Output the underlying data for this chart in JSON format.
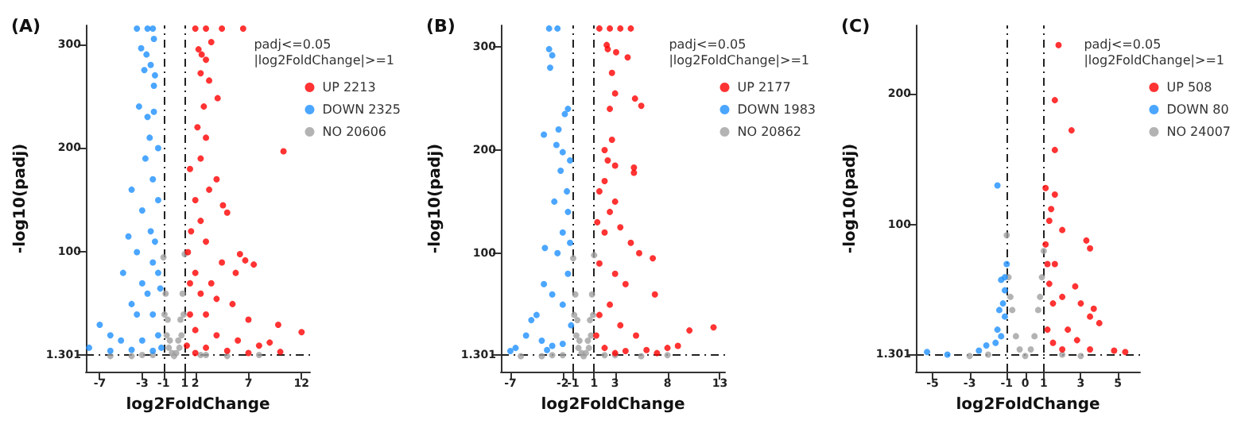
{
  "chart_data": [
    {
      "type": "scatter",
      "title": "(A)",
      "xlabel": "log2FoldChange",
      "ylabel": "-log10(padj)",
      "legend_title": "padj<=0.05\n|log2FoldChange|>=1",
      "legend": "top right",
      "grid": false,
      "marker": "circle",
      "xlim": [
        -8.3,
        12.8
      ],
      "ylim": [
        -15,
        318
      ],
      "xticks": [
        -7,
        -3,
        -1,
        1,
        2,
        7,
        12
      ],
      "yticks": [
        1.301,
        100,
        200,
        300
      ],
      "ref_lines": [
        {
          "axis": "x",
          "value": -1
        },
        {
          "axis": "x",
          "value": 1
        },
        {
          "axis": "y",
          "value": 1.301
        }
      ],
      "series": [
        {
          "name": "UP 2213",
          "color": "#ff0000",
          "x": [
            3.5,
            2.3,
            2.6,
            3.0,
            2.5,
            3.3,
            4.1,
            2.8,
            2.2,
            3.0,
            2.5,
            10.3,
            4.0,
            3.3,
            4.6,
            2.0,
            2.5,
            5.0,
            1.6,
            3.0,
            6.2,
            6.7,
            7.5,
            4.5,
            2.0,
            3.5,
            5.8,
            1.5,
            2.5,
            4.0,
            5.5,
            9.8,
            12,
            7,
            3,
            1.5,
            2,
            4,
            6,
            8,
            9,
            3,
            5,
            1.2,
            2,
            7,
            10,
            1.3,
            1.5,
            2.0,
            3.0,
            4.5,
            6.5
          ],
          "values": [
            302,
            295,
            290,
            285,
            272,
            265,
            248,
            240,
            220,
            210,
            190,
            197,
            170,
            160,
            145,
            150,
            130,
            138,
            120,
            110,
            98,
            92,
            88,
            90,
            80,
            70,
            80,
            70,
            60,
            55,
            50,
            30,
            23,
            35,
            40,
            40,
            25,
            20,
            15,
            10,
            13,
            8,
            5,
            10,
            3,
            3,
            4,
            100,
            180,
            315,
            315,
            315,
            315
          ]
        },
        {
          "name": "DOWN 2325",
          "color": "#1e90ff",
          "x": [
            -1.9,
            -3.1,
            -2.6,
            -2.2,
            -2.8,
            -1.8,
            -1.9,
            -3.3,
            -1.9,
            -2.5,
            -2.3,
            -1.5,
            -2.7,
            -4.0,
            -2.0,
            -1.5,
            -3.0,
            -2.2,
            -4.3,
            -1.8,
            -3.5,
            -2.0,
            -4.8,
            -1.5,
            -3.0,
            -2.5,
            -1.3,
            -4.0,
            -3.5,
            -2.0,
            -7.0,
            -6.0,
            -5,
            -3,
            -1.5,
            -8,
            -6,
            -4,
            -2,
            -1.2,
            -3.5,
            -2.5,
            -2
          ],
          "values": [
            305,
            296,
            290,
            280,
            275,
            270,
            260,
            240,
            235,
            230,
            210,
            200,
            190,
            160,
            170,
            150,
            140,
            120,
            115,
            110,
            100,
            90,
            80,
            80,
            70,
            60,
            65,
            50,
            40,
            40,
            30,
            20,
            15,
            15,
            20,
            8,
            5,
            6,
            5,
            8,
            315,
            315,
            315
          ]
        },
        {
          "name": "NO 20606",
          "color": "#a0a0a0",
          "x": [
            -1,
            -0.8,
            -0.6,
            -0.4,
            -0.2,
            0,
            0.2,
            0.4,
            0.6,
            0.8,
            1,
            -0.9,
            0.9,
            -0.7,
            0.7,
            -0.5,
            0.5,
            -6,
            -4,
            -3,
            -2,
            2.5,
            3,
            5,
            8
          ],
          "values": [
            95,
            60,
            35,
            15,
            3,
            0,
            3,
            15,
            35,
            60,
            98,
            40,
            40,
            20,
            20,
            8,
            8,
            0,
            0,
            1,
            1,
            1,
            1,
            0,
            1
          ]
        }
      ]
    },
    {
      "type": "scatter",
      "title": "(B)",
      "xlabel": "log2FoldChange",
      "ylabel": "-log10(padj)",
      "legend_title": "padj<=0.05\n|log2FoldChange|>=1",
      "legend": "top right",
      "grid": false,
      "marker": "circle",
      "xlim": [
        -7.9,
        13.5
      ],
      "ylim": [
        -15,
        321
      ],
      "xticks": [
        -7,
        -2,
        -1,
        1,
        3,
        8,
        13
      ],
      "yticks": [
        1.301,
        100,
        200,
        300
      ],
      "ref_lines": [
        {
          "axis": "x",
          "value": -1
        },
        {
          "axis": "x",
          "value": 1
        },
        {
          "axis": "y",
          "value": 1.301
        }
      ],
      "series": [
        {
          "name": "UP 2177",
          "color": "#ff0000",
          "x": [
            2.2,
            2.3,
            3.1,
            4.2,
            2.7,
            3.0,
            2.5,
            4.9,
            5.5,
            2.7,
            2.0,
            2.3,
            3.0,
            4.8,
            4.8,
            2.0,
            1.5,
            3.0,
            2.5,
            1.3,
            3.5,
            4.5,
            5.3,
            2.0,
            6.6,
            3.0,
            1.5,
            4.0,
            6.8,
            2.5,
            1.5,
            3.5,
            5.0,
            10.1,
            12.4,
            9,
            8,
            6,
            4,
            2,
            1.2,
            3,
            7,
            1.5,
            2.5,
            3.5,
            4.5
          ],
          "values": [
            302,
            298,
            295,
            290,
            275,
            255,
            240,
            250,
            243,
            210,
            200,
            190,
            185,
            183,
            178,
            170,
            160,
            150,
            140,
            130,
            125,
            110,
            100,
            120,
            95,
            80,
            90,
            70,
            60,
            50,
            40,
            30,
            20,
            25,
            28,
            10,
            8,
            6,
            5,
            8,
            20,
            3,
            3,
            318,
            318,
            318,
            318
          ]
        },
        {
          "name": "DOWN 1983",
          "color": "#1e90ff",
          "x": [
            -3.3,
            -3.0,
            -3.2,
            -1.5,
            -1.8,
            -2.4,
            -2.6,
            -2.0,
            -3.8,
            -1.3,
            -2.2,
            -1.6,
            -2.8,
            -1.5,
            -3.7,
            -2.0,
            -1.3,
            -3.8,
            -2.5,
            -1.5,
            -3.0,
            -4.5,
            -2.0,
            -5.0,
            -7.0,
            -6.5,
            -4.0,
            -3.0,
            -2.0,
            -1.2,
            -5.5,
            -3.5,
            -3.3,
            -2.5
          ],
          "values": [
            298,
            292,
            280,
            240,
            235,
            220,
            205,
            198,
            215,
            190,
            180,
            160,
            150,
            140,
            105,
            120,
            110,
            70,
            100,
            80,
            60,
            40,
            50,
            35,
            5,
            8,
            15,
            10,
            12,
            30,
            20,
            6,
            318,
            318
          ]
        },
        {
          "name": "NO 20862",
          "color": "#a0a0a0",
          "x": [
            -1,
            -0.8,
            -0.6,
            -0.4,
            -0.2,
            0,
            0.2,
            0.4,
            0.6,
            0.8,
            1,
            -0.9,
            0.9,
            -0.7,
            0.7,
            -0.5,
            0.5,
            -6,
            -4,
            -3,
            -2,
            2,
            3,
            5.5,
            8
          ],
          "values": [
            95,
            60,
            35,
            15,
            3,
            0,
            3,
            15,
            35,
            60,
            98,
            40,
            40,
            20,
            20,
            8,
            8,
            0,
            0,
            1,
            1,
            1,
            1,
            0,
            1
          ]
        }
      ]
    },
    {
      "type": "scatter",
      "title": "(C)",
      "xlabel": "log2FoldChange",
      "ylabel": "-log10(padj)",
      "legend_title": "padj<=0.05\n|log2FoldChange|>=1",
      "legend": "top right",
      "grid": false,
      "marker": "circle",
      "xlim": [
        -5.9,
        6.2
      ],
      "ylim": [
        -12,
        252
      ],
      "xticks": [
        -5,
        -3,
        -1,
        0,
        1,
        3,
        5
      ],
      "yticks": [
        1.301,
        100,
        200
      ],
      "ref_lines": [
        {
          "axis": "x",
          "value": -1
        },
        {
          "axis": "x",
          "value": 1
        },
        {
          "axis": "y",
          "value": 1.301
        }
      ],
      "series": [
        {
          "name": "UP 508",
          "color": "#ff0000",
          "x": [
            1.8,
            1.6,
            2.5,
            1.6,
            1.1,
            1.6,
            1.4,
            1.3,
            2.0,
            3.3,
            3.5,
            1.1,
            1.2,
            1.6,
            2.7,
            1.3,
            3.0,
            2.0,
            1.5,
            3.5,
            4.0,
            3.7,
            2.3,
            1.2,
            2.8,
            5.4,
            4.8,
            3.5,
            2,
            1.5
          ],
          "values": [
            237,
            195,
            172,
            157,
            128,
            123,
            112,
            103,
            96,
            88,
            82,
            85,
            70,
            70,
            53,
            55,
            40,
            45,
            40,
            30,
            25,
            36,
            20,
            20,
            12,
            3,
            4,
            5,
            5,
            10
          ]
        },
        {
          "name": "DOWN 80",
          "color": "#1e90ff",
          "x": [
            -1.5,
            -1.0,
            -1.1,
            -1.3,
            -1.1,
            -1.2,
            -1.4,
            -1.1,
            -1.5,
            -1.6,
            -2.1,
            -2.5,
            -4.2,
            -5.3,
            -1.3
          ],
          "values": [
            130,
            70,
            60,
            58,
            50,
            40,
            35,
            30,
            20,
            10,
            8,
            4,
            1,
            3,
            15
          ]
        },
        {
          "name": "NO 24007",
          "color": "#a0a0a0",
          "x": [
            -1,
            -0.9,
            -0.7,
            -0.5,
            -0.3,
            0,
            0.3,
            0.5,
            0.7,
            0.9,
            1,
            -0.8,
            0.8,
            -3,
            -2,
            2,
            3
          ],
          "values": [
            92,
            60,
            35,
            15,
            5,
            0,
            5,
            15,
            35,
            60,
            80,
            45,
            45,
            0,
            1,
            1,
            0
          ]
        }
      ]
    }
  ]
}
